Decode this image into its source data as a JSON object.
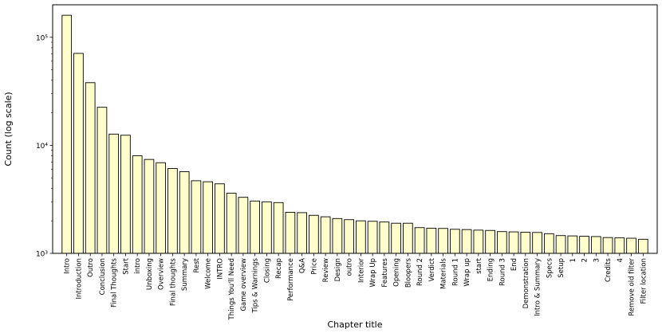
{
  "chart_data": {
    "type": "bar",
    "title": "",
    "xlabel": "Chapter title",
    "ylabel": "Count (log scale)",
    "yscale": "log",
    "ylim": [
      1000,
      200000
    ],
    "ytick_values": [
      1000,
      10000,
      100000
    ],
    "ytick_labels": [
      "10³",
      "10⁴",
      "10⁵"
    ],
    "grid": false,
    "legend": "none",
    "bar_color": "#ffffcc",
    "edge_color": "#000000",
    "categories": [
      "Intro",
      "Introduction",
      "Outro",
      "Conclusion",
      "Final Thoughts",
      "Start",
      "intro",
      "Unboxing",
      "Overview",
      "Final thoughts",
      "Summary",
      "Rest",
      "Welcome",
      "INTRO",
      "Things You'll Need",
      "Game overview",
      "Tips & Warnings",
      "Closing",
      "Recap",
      "Performance",
      "Q&A",
      "Price",
      "Review",
      "Design",
      "outro",
      "Interior",
      "Wrap Up",
      "Features",
      "Opening",
      "Bloopers",
      "Round 2",
      "Verdict",
      "Materials",
      "Round 1",
      "Wrap up",
      "start",
      "Ending",
      "Round 3",
      "End",
      "Demonstration",
      "Intro & Summary",
      "Specs",
      "Setup",
      "1",
      "2",
      "3",
      "Credits",
      "4",
      "Remove old filter",
      "Filter location"
    ],
    "values": [
      160000,
      71000,
      38000,
      22500,
      12700,
      12400,
      8000,
      7400,
      6900,
      6100,
      5700,
      4700,
      4600,
      4400,
      3600,
      3300,
      3050,
      3000,
      2950,
      2400,
      2380,
      2250,
      2180,
      2100,
      2050,
      2000,
      1980,
      1950,
      1900,
      1900,
      1730,
      1710,
      1700,
      1670,
      1660,
      1640,
      1630,
      1590,
      1580,
      1570,
      1560,
      1520,
      1460,
      1450,
      1440,
      1430,
      1400,
      1390,
      1380,
      1350
    ]
  }
}
